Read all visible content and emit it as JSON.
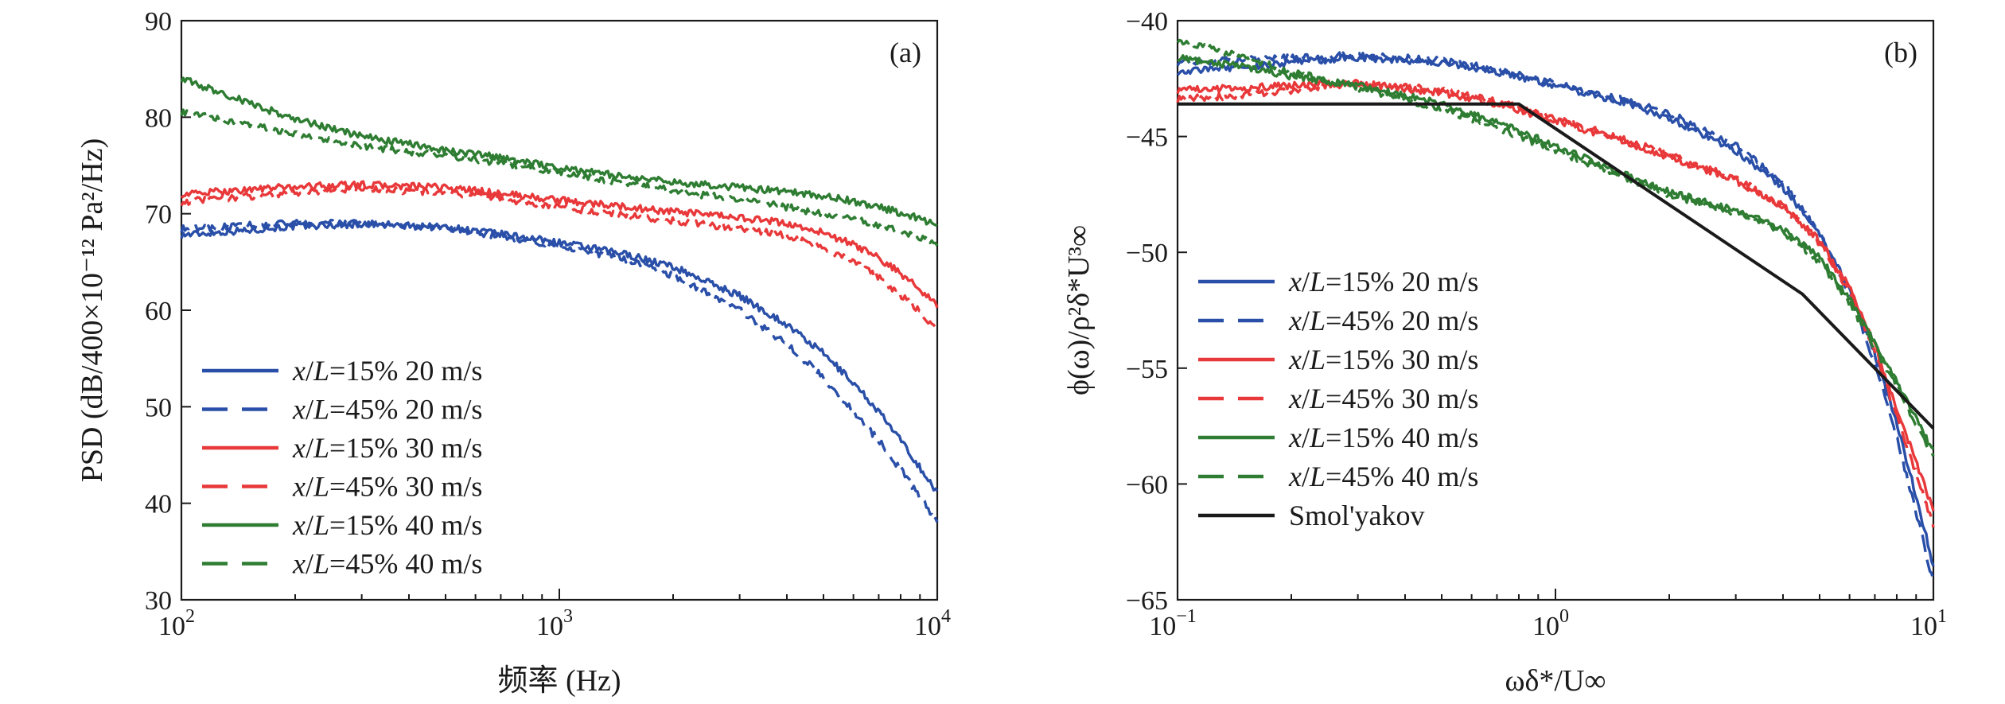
{
  "colors": {
    "blue": "#2a4fa8",
    "red": "#e8383a",
    "green": "#2e7d32",
    "black": "#1a1a1a"
  },
  "chart_data": [
    {
      "type": "line",
      "panel_tag": "(a)",
      "xlabel": "频率 (Hz)",
      "ylabel": "PSD (dB/400×10⁻¹² Pa²/Hz)",
      "x_scale": "log",
      "xlim": [
        100,
        10000
      ],
      "ylim": [
        30,
        90
      ],
      "x_ticks": [
        {
          "value": 100,
          "base": "10",
          "exp": "2"
        },
        {
          "value": 1000,
          "base": "10",
          "exp": "3"
        },
        {
          "value": 10000,
          "base": "10",
          "exp": "4"
        }
      ],
      "y_ticks": [
        "30",
        "40",
        "50",
        "60",
        "70",
        "80",
        "90"
      ],
      "legend_placement": "bottom-left",
      "series": [
        {
          "name": "x/L=15% 20 m/s",
          "name_var": "x",
          "name_slash": "/",
          "name_var2": "L",
          "name_rest": "=15% 20 m/s",
          "color": "#2a4fa8",
          "dash": "solid",
          "x": [
            100,
            150,
            200,
            300,
            500,
            700,
            1000,
            1500,
            2000,
            3000,
            4000,
            5000,
            6000,
            7000,
            8000,
            9000,
            10000
          ],
          "y": [
            67.8,
            68.3,
            68.7,
            68.9,
            68.6,
            67.9,
            67.0,
            65.8,
            64.5,
            61.5,
            58.5,
            55.5,
            52.5,
            49.5,
            46.5,
            43.7,
            41.0
          ]
        },
        {
          "name": "x/L=45% 20 m/s",
          "name_var": "x",
          "name_slash": "/",
          "name_var2": "L",
          "name_rest": "=45% 20 m/s",
          "color": "#2a4fa8",
          "dash": "dashed",
          "x": [
            100,
            150,
            200,
            300,
            500,
            700,
            1000,
            1500,
            2000,
            3000,
            4000,
            5000,
            6000,
            7000,
            8000,
            9000,
            10000
          ],
          "y": [
            68.4,
            68.8,
            69.0,
            69.0,
            68.5,
            67.7,
            66.7,
            65.3,
            63.6,
            60.0,
            56.5,
            53.0,
            49.5,
            46.5,
            43.5,
            40.7,
            38.0
          ]
        },
        {
          "name": "x/L=15% 30 m/s",
          "name_var": "x",
          "name_slash": "/",
          "name_var2": "L",
          "name_rest": "=15% 30 m/s",
          "color": "#e8383a",
          "dash": "solid",
          "x": [
            100,
            150,
            200,
            300,
            500,
            700,
            1000,
            1500,
            2000,
            3000,
            4000,
            5000,
            6000,
            7000,
            8000,
            9000,
            10000
          ],
          "y": [
            72.0,
            72.5,
            72.8,
            73.0,
            72.7,
            72.1,
            71.4,
            70.7,
            70.2,
            69.6,
            69.0,
            68.0,
            66.8,
            65.4,
            63.8,
            62.2,
            60.5
          ]
        },
        {
          "name": "x/L=45% 30 m/s",
          "name_var": "x",
          "name_slash": "/",
          "name_var2": "L",
          "name_rest": "=45% 30 m/s",
          "color": "#e8383a",
          "dash": "dashed",
          "x": [
            100,
            150,
            200,
            300,
            500,
            700,
            1000,
            1500,
            2000,
            3000,
            4000,
            5000,
            6000,
            7000,
            8000,
            9000,
            10000
          ],
          "y": [
            71.2,
            71.8,
            72.2,
            72.6,
            72.2,
            71.6,
            70.7,
            69.8,
            69.3,
            68.5,
            67.7,
            66.5,
            65.0,
            63.4,
            61.6,
            59.8,
            58.0
          ]
        },
        {
          "name": "x/L=15% 40 m/s",
          "name_var": "x",
          "name_slash": "/",
          "name_var2": "L",
          "name_rest": "=15% 40 m/s",
          "color": "#2e7d32",
          "dash": "solid",
          "x": [
            100,
            150,
            200,
            300,
            500,
            700,
            1000,
            1500,
            2000,
            3000,
            4000,
            5000,
            6000,
            7000,
            8000,
            9000,
            10000
          ],
          "y": [
            84.0,
            81.5,
            79.8,
            78.0,
            76.6,
            75.8,
            74.8,
            73.8,
            73.3,
            72.7,
            72.3,
            71.8,
            71.3,
            70.7,
            70.1,
            69.5,
            68.8
          ]
        },
        {
          "name": "x/L=45% 40 m/s",
          "name_var": "x",
          "name_slash": "/",
          "name_var2": "L",
          "name_rest": "=45% 40 m/s",
          "color": "#2e7d32",
          "dash": "dashed",
          "x": [
            100,
            150,
            200,
            300,
            500,
            700,
            1000,
            1500,
            2000,
            3000,
            4000,
            5000,
            6000,
            7000,
            8000,
            9000,
            10000
          ],
          "y": [
            80.5,
            79.2,
            78.2,
            77.0,
            76.0,
            75.3,
            74.3,
            73.2,
            72.4,
            71.4,
            70.7,
            70.0,
            69.4,
            68.8,
            68.2,
            67.6,
            67.0
          ]
        }
      ]
    },
    {
      "type": "line",
      "panel_tag": "(b)",
      "xlabel": "ωδ*/U∞",
      "ylabel": "ϕ(ω)/ρ²δ*U³∞",
      "x_scale": "log",
      "xlim": [
        0.1,
        10
      ],
      "ylim": [
        -65,
        -40
      ],
      "x_ticks": [
        {
          "value": 0.1,
          "base": "10",
          "exp": "−1"
        },
        {
          "value": 1,
          "base": "10",
          "exp": "0"
        },
        {
          "value": 10,
          "base": "10",
          "exp": "1"
        }
      ],
      "y_ticks": [
        "−65",
        "−60",
        "−55",
        "−50",
        "−45",
        "−40"
      ],
      "legend_placement": "bottom-left",
      "series": [
        {
          "name": "x/L=15% 20 m/s",
          "name_var": "x",
          "name_slash": "/",
          "name_var2": "L",
          "name_rest": "=15% 20 m/s",
          "color": "#2a4fa8",
          "dash": "solid",
          "x": [
            0.1,
            0.15,
            0.2,
            0.3,
            0.5,
            0.7,
            1.0,
            1.5,
            2.0,
            3.0,
            4.0,
            5.0,
            6.0,
            7.0,
            8.0,
            9.0,
            10.0
          ],
          "y": [
            -42.2,
            -42.0,
            -41.8,
            -41.6,
            -41.8,
            -42.2,
            -42.8,
            -43.5,
            -44.2,
            -45.6,
            -47.2,
            -49.2,
            -51.6,
            -54.4,
            -57.4,
            -60.5,
            -63.5
          ]
        },
        {
          "name": "x/L=45% 20 m/s",
          "name_var": "x",
          "name_slash": "/",
          "name_var2": "L",
          "name_rest": "=45% 20 m/s",
          "color": "#2a4fa8",
          "dash": "dashed",
          "x": [
            0.1,
            0.15,
            0.2,
            0.3,
            0.5,
            0.7,
            1.0,
            1.5,
            2.0,
            3.0,
            4.0,
            5.0,
            6.0,
            7.0,
            8.0,
            9.0,
            10.0
          ],
          "y": [
            -41.8,
            -41.7,
            -41.6,
            -41.5,
            -41.7,
            -42.1,
            -42.7,
            -43.4,
            -44.0,
            -45.4,
            -47.0,
            -49.2,
            -51.8,
            -54.8,
            -58.0,
            -61.2,
            -64.3
          ]
        },
        {
          "name": "x/L=15% 30 m/s",
          "name_var": "x",
          "name_slash": "/",
          "name_var2": "L",
          "name_rest": "=15% 30 m/s",
          "color": "#e8383a",
          "dash": "solid",
          "x": [
            0.1,
            0.15,
            0.2,
            0.3,
            0.5,
            0.7,
            1.0,
            1.5,
            2.0,
            3.0,
            4.0,
            5.0,
            6.0,
            7.0,
            8.0,
            9.0,
            10.0
          ],
          "y": [
            -43.0,
            -42.9,
            -42.8,
            -42.7,
            -43.1,
            -43.6,
            -44.3,
            -45.2,
            -45.9,
            -46.9,
            -48.0,
            -49.5,
            -51.5,
            -54.0,
            -56.8,
            -59.0,
            -61.2
          ]
        },
        {
          "name": "x/L=45% 30 m/s",
          "name_var": "x",
          "name_slash": "/",
          "name_var2": "L",
          "name_rest": "=45% 30 m/s",
          "color": "#e8383a",
          "dash": "dashed",
          "x": [
            0.1,
            0.15,
            0.2,
            0.3,
            0.5,
            0.7,
            1.0,
            1.5,
            2.0,
            3.0,
            4.0,
            5.0,
            6.0,
            7.0,
            8.0,
            9.0,
            10.0
          ],
          "y": [
            -43.4,
            -43.2,
            -43.0,
            -42.7,
            -43.0,
            -43.5,
            -44.2,
            -45.1,
            -45.8,
            -46.8,
            -48.0,
            -49.6,
            -51.7,
            -54.2,
            -57.1,
            -59.5,
            -61.8
          ]
        },
        {
          "name": "x/L=15% 40 m/s",
          "name_var": "x",
          "name_slash": "/",
          "name_var2": "L",
          "name_rest": "=15% 40 m/s",
          "color": "#2e7d32",
          "dash": "solid",
          "x": [
            0.1,
            0.15,
            0.2,
            0.3,
            0.5,
            0.7,
            1.0,
            1.5,
            2.0,
            3.0,
            4.0,
            5.0,
            6.0,
            7.0,
            8.0,
            9.0,
            10.0
          ],
          "y": [
            -41.6,
            -42.0,
            -42.4,
            -42.8,
            -43.6,
            -44.4,
            -45.4,
            -46.6,
            -47.4,
            -48.2,
            -49.0,
            -50.2,
            -52.0,
            -53.9,
            -55.6,
            -57.2,
            -58.6
          ]
        },
        {
          "name": "x/L=45% 40 m/s",
          "name_var": "x",
          "name_slash": "/",
          "name_var2": "L",
          "name_rest": "=45% 40 m/s",
          "color": "#2e7d32",
          "dash": "dashed",
          "x": [
            0.1,
            0.15,
            0.2,
            0.3,
            0.5,
            0.7,
            1.0,
            1.5,
            2.0,
            3.0,
            4.0,
            5.0,
            6.0,
            7.0,
            8.0,
            9.0,
            10.0
          ],
          "y": [
            -40.8,
            -41.6,
            -42.2,
            -42.9,
            -43.8,
            -44.6,
            -45.6,
            -46.7,
            -47.5,
            -48.3,
            -49.1,
            -50.4,
            -52.2,
            -54.1,
            -55.8,
            -57.4,
            -58.8
          ]
        },
        {
          "name": "Smol'yakov",
          "color": "#1a1a1a",
          "dash": "solid",
          "x": [
            0.1,
            0.8,
            4.5,
            10.0
          ],
          "y": [
            -43.6,
            -43.6,
            -51.8,
            -57.6
          ]
        }
      ]
    }
  ]
}
